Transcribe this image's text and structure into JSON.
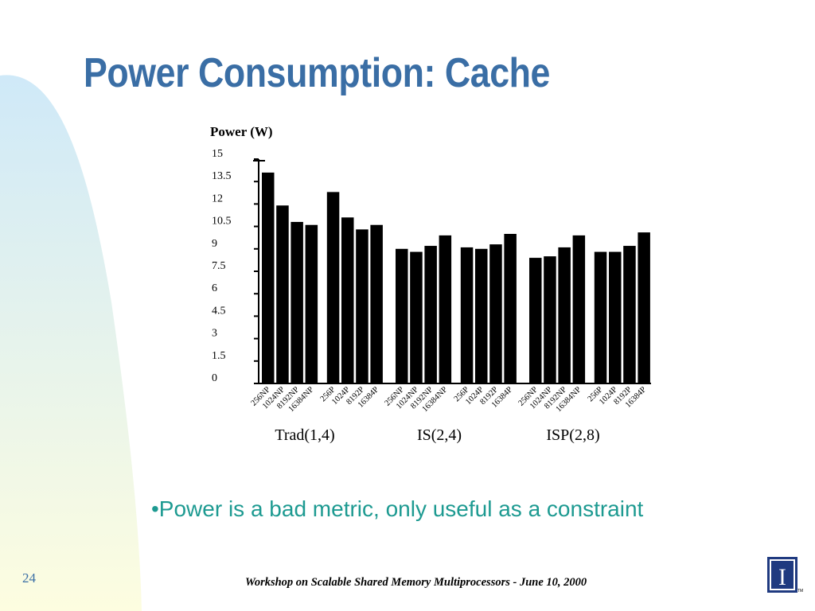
{
  "slide": {
    "title": "Power Consumption: Cache",
    "bullet": "•Power is a bad metric, only useful as a constraint",
    "slide_number": "24",
    "footer": "Workshop on Scalable Shared Memory Multiprocessors - June 10, 2000",
    "logo_text": "I",
    "logo_mark": "TM"
  },
  "colors": {
    "title": "#3a6ea5",
    "bullet": "#1d9a91",
    "bars": "#000000",
    "background_gradient_top": "#cfe9f8",
    "background_gradient_bottom": "#fdfde0",
    "logo_primary": "#1f3a80",
    "logo_accent": "#d35400"
  },
  "chart_data": {
    "type": "bar",
    "title": "Power (W)",
    "ylim": [
      0,
      15
    ],
    "yticks": [
      "15",
      "13.5",
      "12",
      "10.5",
      "9",
      "7.5",
      "6",
      "4.5",
      "3",
      "1.5",
      "0"
    ],
    "groups": [
      {
        "name": "Trad(1,4)",
        "categories": [
          "256NP",
          "1024NP",
          "8192NP",
          "16384NP",
          "256P",
          "1024P",
          "8192P",
          "16384P"
        ],
        "values": [
          14.1,
          11.9,
          10.8,
          10.6,
          12.8,
          11.1,
          10.3,
          10.6
        ]
      },
      {
        "name": "IS(2,4)",
        "categories": [
          "256NP",
          "1024NP",
          "8192NP",
          "16384NP",
          "256P",
          "1024P",
          "8192P",
          "16384P"
        ],
        "values": [
          9.0,
          8.8,
          9.2,
          9.9,
          9.1,
          9.0,
          9.3,
          10.0
        ]
      },
      {
        "name": "ISP(2,8)",
        "categories": [
          "256NP",
          "1024NP",
          "8192NP",
          "16384NP",
          "256P",
          "1024P",
          "8192P",
          "16384P"
        ],
        "values": [
          8.4,
          8.5,
          9.1,
          9.9,
          8.8,
          8.8,
          9.2,
          10.1
        ]
      }
    ],
    "grid": false,
    "legend": "none"
  }
}
